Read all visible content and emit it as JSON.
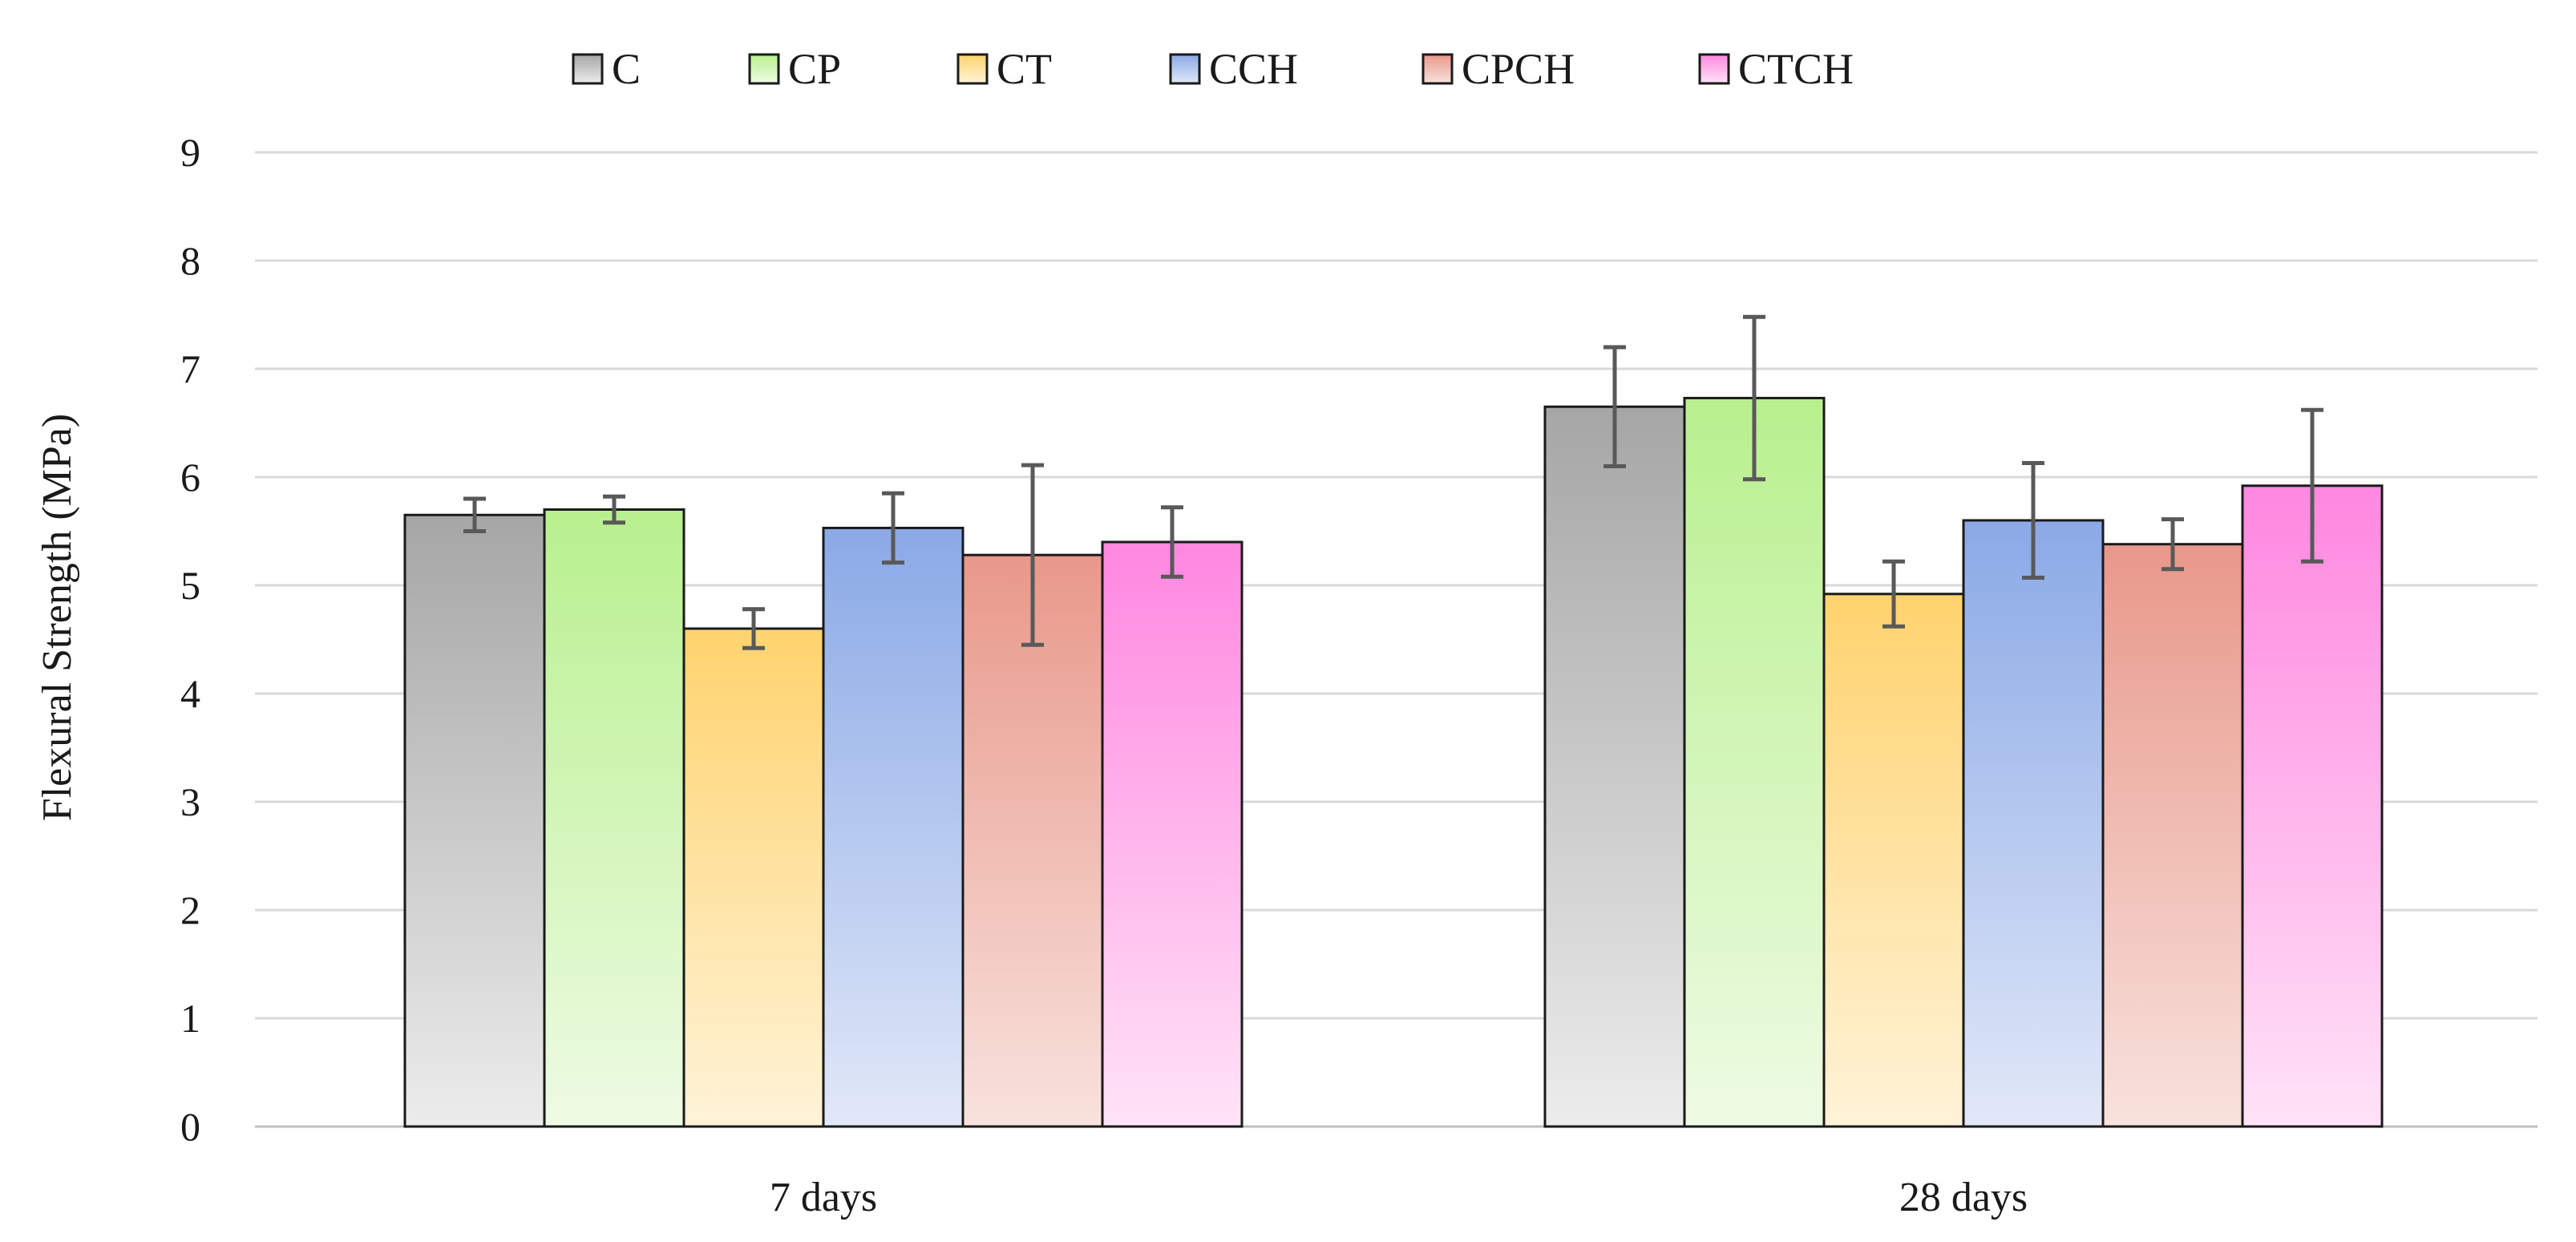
{
  "chart_data": {
    "type": "bar",
    "title": "",
    "xlabel": "",
    "ylabel": "Flexural Strength (MPa)",
    "ylim": [
      0,
      9
    ],
    "yticks": [
      0,
      1,
      2,
      3,
      4,
      5,
      6,
      7,
      8,
      9
    ],
    "grid": true,
    "legend_position": "top",
    "categories": [
      "7 days",
      "28 days"
    ],
    "series": [
      {
        "name": "C",
        "values": [
          5.65,
          6.65
        ],
        "errors": [
          0.15,
          0.55
        ],
        "color": "#a6a6a6",
        "color_light": "#ececec"
      },
      {
        "name": "CP",
        "values": [
          5.7,
          6.73
        ],
        "errors": [
          0.12,
          0.75
        ],
        "color": "#b8f08e",
        "color_light": "#eefbe4"
      },
      {
        "name": "CT",
        "values": [
          4.6,
          4.92
        ],
        "errors": [
          0.18,
          0.3
        ],
        "color": "#ffd36e",
        "color_light": "#fff3d8"
      },
      {
        "name": "CCH",
        "values": [
          5.53,
          5.6
        ],
        "errors": [
          0.32,
          0.53
        ],
        "color": "#8aa9e6",
        "color_light": "#e1e8f8"
      },
      {
        "name": "CPCH",
        "values": [
          5.28,
          5.38
        ],
        "errors": [
          0.83,
          0.23
        ],
        "color": "#e8988a",
        "color_light": "#f8e2dd"
      },
      {
        "name": "CTCH",
        "values": [
          5.4,
          5.92
        ],
        "errors": [
          0.32,
          0.7
        ],
        "color": "#ff87e0",
        "color_light": "#ffe3f7"
      }
    ]
  }
}
